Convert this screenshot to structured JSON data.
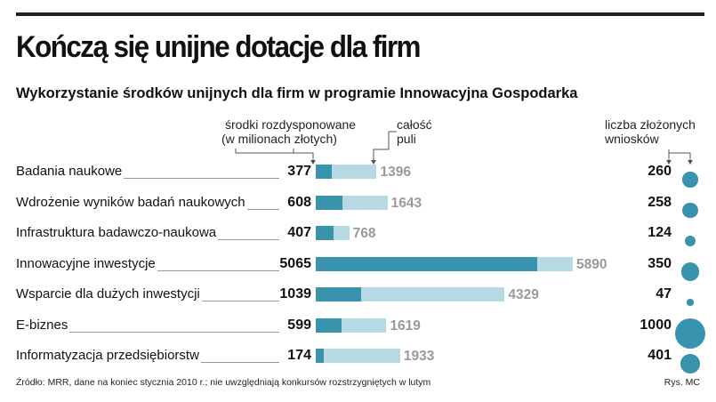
{
  "title": "Kończą się unijne dotacje dla firm",
  "subtitle": "Wykorzystanie środków unijnych dla firm w programie Innowacyjna Gospodarka",
  "headers": {
    "spent_line1": "środki rozdysponowane",
    "spent_line2": "(w milionach złotych)",
    "pool_line1": "całość",
    "pool_line2": "puli",
    "apps_line1": "liczba złożonych",
    "apps_line2": "wniosków"
  },
  "chart_data": {
    "type": "bar",
    "categories": [
      "Badania naukowe",
      "Wdrożenie wyników badań naukowych",
      "Infrastruktura badawczo-naukowa",
      "Innowacyjne inwestycje",
      "Wsparcie dla dużych inwestycji",
      "E-biznes",
      "Informatyzacja przedsiębiorstw"
    ],
    "series": [
      {
        "name": "środki rozdysponowane (w milionach złotych)",
        "values": [
          377,
          608,
          407,
          5065,
          1039,
          599,
          174
        ]
      },
      {
        "name": "całość puli",
        "values": [
          1396,
          1643,
          768,
          5890,
          4329,
          1619,
          1933
        ]
      },
      {
        "name": "liczba złożonych wniosków",
        "values": [
          260,
          258,
          124,
          350,
          47,
          1000,
          401
        ]
      }
    ],
    "xlim": [
      0,
      5890
    ]
  },
  "rows": [
    {
      "label": "Badania naukowe",
      "spent": "377",
      "pool": "1396",
      "apps": "260"
    },
    {
      "label": "Wdrożenie wyników badań naukowych",
      "spent": "608",
      "pool": "1643",
      "apps": "258"
    },
    {
      "label": "Infrastruktura badawczo-naukowa",
      "spent": "407",
      "pool": "768",
      "apps": "124"
    },
    {
      "label": "Innowacyjne inwestycje",
      "spent": "5065",
      "pool": "5890",
      "apps": "350"
    },
    {
      "label": "Wsparcie dla dużych inwestycji",
      "spent": "1039",
      "pool": "4329",
      "apps": "47"
    },
    {
      "label": "E-biznes",
      "spent": "599",
      "pool": "1619",
      "apps": "1000"
    },
    {
      "label": "Informatyzacja przedsiębiorstw",
      "spent": "174",
      "pool": "1933",
      "apps": "401"
    }
  ],
  "colors": {
    "spent": "#3a93ad",
    "pool": "#b7d9e3",
    "bubble": "#3a93ad",
    "pool_text": "#9a9a9a"
  },
  "source": "Źródło: MRR, dane na koniec stycznia 2010 r.; nie uwzględniają konkursów rozstrzygniętych w lutym",
  "credit": "Rys. MC"
}
